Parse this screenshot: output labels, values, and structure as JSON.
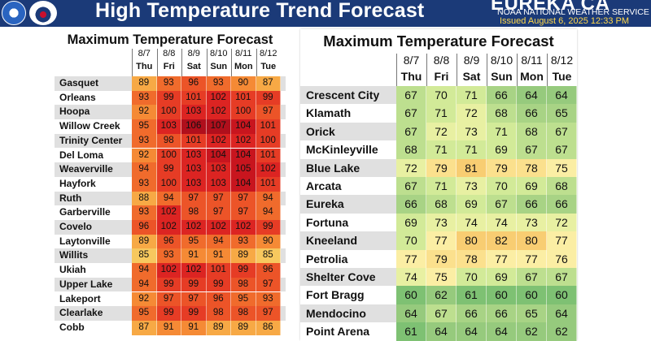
{
  "header": {
    "title": "High Temperature Trend Forecast",
    "office": "EUREKA CA",
    "office_sub": "NOAA NATIONAL WEATHER SERVICE",
    "issued": "Issued August 6, 2025 12:33 PM",
    "logo1_icon": "noaa-logo-icon",
    "logo2_icon": "nws-logo-icon",
    "banner_color": "#1b3a78",
    "issued_color": "#ffd84a"
  },
  "left_table": {
    "title": "Maximum Temperature Forecast",
    "dates": [
      "8/7",
      "8/8",
      "8/9",
      "8/10",
      "8/11",
      "8/12"
    ],
    "days": [
      "Thu",
      "Fri",
      "Sat",
      "Sun",
      "Mon",
      "Tue"
    ],
    "rows": [
      {
        "name": "Gasquet",
        "values": [
          89,
          93,
          96,
          93,
          90,
          87
        ]
      },
      {
        "name": "Orleans",
        "values": [
          93,
          99,
          101,
          102,
          101,
          99
        ]
      },
      {
        "name": "Hoopa",
        "values": [
          92,
          100,
          103,
          102,
          100,
          97
        ]
      },
      {
        "name": "Willow Creek",
        "values": [
          95,
          103,
          106,
          107,
          104,
          101
        ]
      },
      {
        "name": "Trinity Center",
        "values": [
          93,
          98,
          101,
          102,
          102,
          100
        ]
      },
      {
        "name": "Del Loma",
        "values": [
          92,
          100,
          103,
          104,
          104,
          101
        ]
      },
      {
        "name": "Weaverville",
        "values": [
          94,
          99,
          103,
          103,
          105,
          102
        ]
      },
      {
        "name": "Hayfork",
        "values": [
          93,
          100,
          103,
          103,
          104,
          101
        ]
      },
      {
        "name": "Ruth",
        "values": [
          88,
          94,
          97,
          97,
          97,
          94
        ]
      },
      {
        "name": "Garberville",
        "values": [
          93,
          102,
          98,
          97,
          97,
          94
        ]
      },
      {
        "name": "Covelo",
        "values": [
          96,
          102,
          102,
          102,
          102,
          99
        ]
      },
      {
        "name": "Laytonville",
        "values": [
          89,
          96,
          95,
          94,
          93,
          90
        ]
      },
      {
        "name": "Willits",
        "values": [
          85,
          93,
          91,
          91,
          89,
          85
        ]
      },
      {
        "name": "Ukiah",
        "values": [
          94,
          102,
          102,
          101,
          99,
          96
        ]
      },
      {
        "name": "Upper Lake",
        "values": [
          94,
          99,
          99,
          99,
          98,
          97
        ]
      },
      {
        "name": "Lakeport",
        "values": [
          92,
          97,
          97,
          96,
          95,
          93
        ]
      },
      {
        "name": "Clearlake",
        "values": [
          95,
          99,
          99,
          98,
          98,
          97
        ]
      },
      {
        "name": "Cobb",
        "values": [
          87,
          91,
          91,
          89,
          89,
          86
        ]
      }
    ]
  },
  "right_table": {
    "title": "Maximum Temperature Forecast",
    "dates": [
      "8/7",
      "8/8",
      "8/9",
      "8/10",
      "8/11",
      "8/12"
    ],
    "days": [
      "Thu",
      "Fri",
      "Sat",
      "Sun",
      "Mon",
      "Tue"
    ],
    "rows": [
      {
        "name": "Crescent City",
        "values": [
          67,
          70,
          71,
          66,
          64,
          64
        ]
      },
      {
        "name": "Klamath",
        "values": [
          67,
          71,
          72,
          68,
          66,
          65
        ]
      },
      {
        "name": "Orick",
        "values": [
          67,
          72,
          73,
          71,
          68,
          67
        ]
      },
      {
        "name": "McKinleyville",
        "values": [
          68,
          71,
          71,
          69,
          67,
          67
        ]
      },
      {
        "name": "Blue Lake",
        "values": [
          72,
          79,
          81,
          79,
          78,
          75
        ]
      },
      {
        "name": "Arcata",
        "values": [
          67,
          71,
          73,
          70,
          69,
          68
        ]
      },
      {
        "name": "Eureka",
        "values": [
          66,
          68,
          69,
          67,
          66,
          66
        ]
      },
      {
        "name": "Fortuna",
        "values": [
          69,
          73,
          74,
          74,
          73,
          72
        ]
      },
      {
        "name": "Kneeland",
        "values": [
          70,
          77,
          80,
          82,
          80,
          77
        ]
      },
      {
        "name": "Petrolia",
        "values": [
          77,
          79,
          78,
          77,
          77,
          76
        ]
      },
      {
        "name": "Shelter Cove",
        "values": [
          74,
          75,
          70,
          69,
          67,
          67
        ]
      },
      {
        "name": "Fort Bragg",
        "values": [
          60,
          62,
          61,
          60,
          60,
          60
        ]
      },
      {
        "name": "Mendocino",
        "values": [
          64,
          67,
          66,
          66,
          65,
          64
        ]
      },
      {
        "name": "Point Arena",
        "values": [
          61,
          64,
          64,
          64,
          62,
          62
        ]
      }
    ]
  }
}
